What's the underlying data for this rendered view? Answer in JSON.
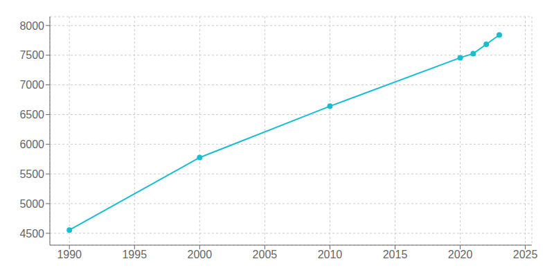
{
  "chart_data": {
    "type": "line",
    "x": [
      1990,
      2000,
      2010,
      2020,
      2021,
      2022,
      2023
    ],
    "series": [
      {
        "values": [
          4555,
          5776,
          6641,
          7457,
          7527,
          7683,
          7841
        ],
        "color": "#17BECF",
        "marker": "circle"
      }
    ],
    "xlim": [
      1988.5,
      2025.5
    ],
    "ylim": [
      4300,
      8150
    ],
    "xticks": [
      1990,
      1995,
      2000,
      2005,
      2010,
      2015,
      2020,
      2025
    ],
    "yticks": [
      4500,
      5000,
      5500,
      6000,
      6500,
      7000,
      7500,
      8000
    ],
    "grid": true
  }
}
